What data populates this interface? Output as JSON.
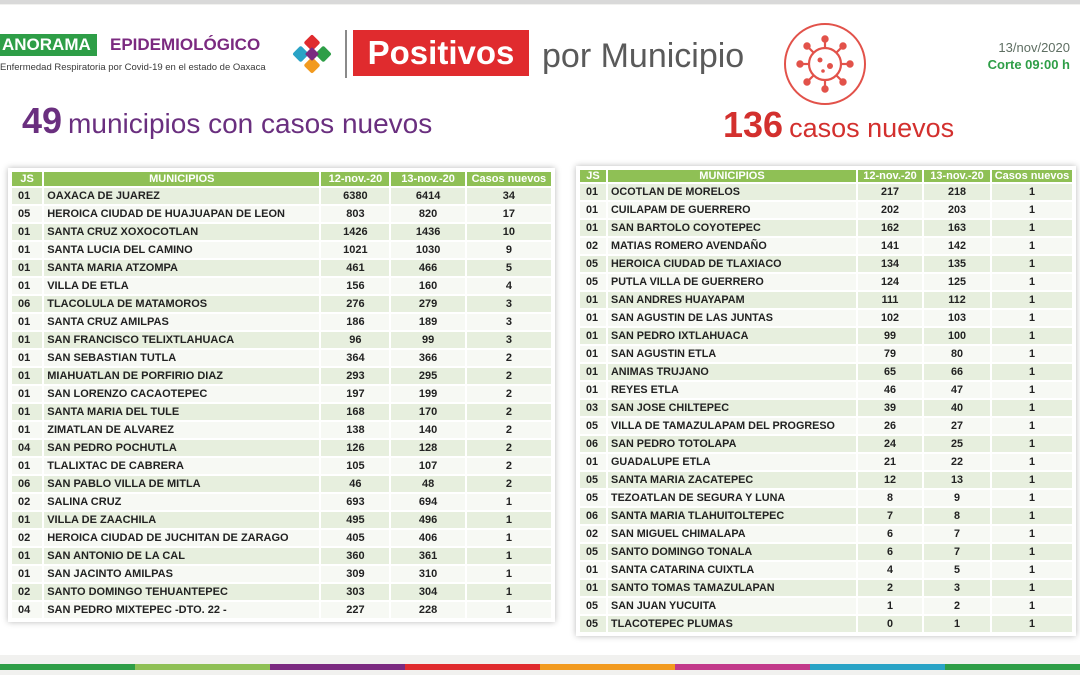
{
  "header": {
    "brand_a": "ANORAMA",
    "brand_b": "EPIDEMIOLÓGICO",
    "brand_sub": "Enfermedad Respiratoria por Covid-19 en el estado de Oaxaca",
    "badge": "Positivos",
    "title": "por Municipio",
    "date": "13/nov/2020",
    "corte": "Corte 09:00 h",
    "virus_icon": "virus-icon",
    "logo_colors": [
      "#e02b2e",
      "#2e9e47",
      "#7b2a80",
      "#f29a1f",
      "#29a3c6"
    ]
  },
  "summary": {
    "municipios_num": "49",
    "municipios_text": "municipios con casos nuevos",
    "casos_num": "136",
    "casos_text": "casos nuevos"
  },
  "colors": {
    "header_green": "#8fc055",
    "row_odd": "#e7efde",
    "row_even": "#f7f9f4",
    "purple": "#6a2f7f",
    "red": "#d3302e"
  },
  "columns": [
    "JS",
    "MUNICIPIOS",
    "12-nov.-20",
    "13-nov.-20",
    "Casos nuevos"
  ],
  "left_rows": [
    [
      "01",
      "OAXACA DE JUAREZ",
      "6380",
      "6414",
      "34"
    ],
    [
      "05",
      "HEROICA CIUDAD DE HUAJUAPAN DE LEON",
      "803",
      "820",
      "17"
    ],
    [
      "01",
      "SANTA CRUZ XOXOCOTLAN",
      "1426",
      "1436",
      "10"
    ],
    [
      "01",
      "SANTA LUCIA DEL CAMINO",
      "1021",
      "1030",
      "9"
    ],
    [
      "01",
      "SANTA MARIA ATZOMPA",
      "461",
      "466",
      "5"
    ],
    [
      "01",
      "VILLA DE ETLA",
      "156",
      "160",
      "4"
    ],
    [
      "06",
      "TLACOLULA DE MATAMOROS",
      "276",
      "279",
      "3"
    ],
    [
      "01",
      "SANTA CRUZ AMILPAS",
      "186",
      "189",
      "3"
    ],
    [
      "01",
      "SAN FRANCISCO TELIXTLAHUACA",
      "96",
      "99",
      "3"
    ],
    [
      "01",
      "SAN SEBASTIAN TUTLA",
      "364",
      "366",
      "2"
    ],
    [
      "01",
      "MIAHUATLAN DE PORFIRIO DIAZ",
      "293",
      "295",
      "2"
    ],
    [
      "01",
      "SAN LORENZO CACAOTEPEC",
      "197",
      "199",
      "2"
    ],
    [
      "01",
      "SANTA MARIA DEL TULE",
      "168",
      "170",
      "2"
    ],
    [
      "01",
      "ZIMATLAN DE ALVAREZ",
      "138",
      "140",
      "2"
    ],
    [
      "04",
      "SAN PEDRO POCHUTLA",
      "126",
      "128",
      "2"
    ],
    [
      "01",
      "TLALIXTAC DE CABRERA",
      "105",
      "107",
      "2"
    ],
    [
      "06",
      "SAN PABLO VILLA DE MITLA",
      "46",
      "48",
      "2"
    ],
    [
      "02",
      "SALINA CRUZ",
      "693",
      "694",
      "1"
    ],
    [
      "01",
      "VILLA DE ZAACHILA",
      "495",
      "496",
      "1"
    ],
    [
      "02",
      "HEROICA CIUDAD DE JUCHITAN DE ZARAGO",
      "405",
      "406",
      "1"
    ],
    [
      "01",
      "SAN ANTONIO DE LA CAL",
      "360",
      "361",
      "1"
    ],
    [
      "01",
      "SAN JACINTO AMILPAS",
      "309",
      "310",
      "1"
    ],
    [
      "02",
      "SANTO DOMINGO TEHUANTEPEC",
      "303",
      "304",
      "1"
    ],
    [
      "04",
      "SAN PEDRO MIXTEPEC -DTO. 22 -",
      "227",
      "228",
      "1"
    ]
  ],
  "right_rows": [
    [
      "01",
      "OCOTLAN DE MORELOS",
      "217",
      "218",
      "1"
    ],
    [
      "01",
      "CUILAPAM DE GUERRERO",
      "202",
      "203",
      "1"
    ],
    [
      "01",
      "SAN BARTOLO COYOTEPEC",
      "162",
      "163",
      "1"
    ],
    [
      "02",
      "MATIAS ROMERO AVENDAÑO",
      "141",
      "142",
      "1"
    ],
    [
      "05",
      "HEROICA CIUDAD DE TLAXIACO",
      "134",
      "135",
      "1"
    ],
    [
      "05",
      "PUTLA VILLA DE GUERRERO",
      "124",
      "125",
      "1"
    ],
    [
      "01",
      "SAN ANDRES HUAYAPAM",
      "111",
      "112",
      "1"
    ],
    [
      "01",
      "SAN AGUSTIN DE LAS JUNTAS",
      "102",
      "103",
      "1"
    ],
    [
      "01",
      "SAN PEDRO IXTLAHUACA",
      "99",
      "100",
      "1"
    ],
    [
      "01",
      "SAN AGUSTIN ETLA",
      "79",
      "80",
      "1"
    ],
    [
      "01",
      "ANIMAS TRUJANO",
      "65",
      "66",
      "1"
    ],
    [
      "01",
      "REYES ETLA",
      "46",
      "47",
      "1"
    ],
    [
      "03",
      "SAN JOSE CHILTEPEC",
      "39",
      "40",
      "1"
    ],
    [
      "05",
      "VILLA DE TAMAZULAPAM DEL PROGRESO",
      "26",
      "27",
      "1"
    ],
    [
      "06",
      "SAN PEDRO TOTOLAPA",
      "24",
      "25",
      "1"
    ],
    [
      "01",
      "GUADALUPE ETLA",
      "21",
      "22",
      "1"
    ],
    [
      "05",
      "SANTA MARIA ZACATEPEC",
      "12",
      "13",
      "1"
    ],
    [
      "05",
      "TEZOATLAN DE SEGURA Y LUNA",
      "8",
      "9",
      "1"
    ],
    [
      "06",
      "SANTA MARIA TLAHUITOLTEPEC",
      "7",
      "8",
      "1"
    ],
    [
      "02",
      "SAN MIGUEL CHIMALAPA",
      "6",
      "7",
      "1"
    ],
    [
      "05",
      "SANTO DOMINGO TONALA",
      "6",
      "7",
      "1"
    ],
    [
      "01",
      "SANTA CATARINA CUIXTLA",
      "4",
      "5",
      "1"
    ],
    [
      "01",
      "SANTO TOMAS TAMAZULAPAN",
      "2",
      "3",
      "1"
    ],
    [
      "05",
      "SAN JUAN YUCUITA",
      "1",
      "2",
      "1"
    ],
    [
      "05",
      "TLACOTEPEC PLUMAS",
      "0",
      "1",
      "1"
    ]
  ],
  "footer_colors": [
    "#2e9e47",
    "#8fc055",
    "#7b2a80",
    "#e02b2e",
    "#f29a1f",
    "#c2398a",
    "#29a3c6",
    "#2e9e47"
  ]
}
